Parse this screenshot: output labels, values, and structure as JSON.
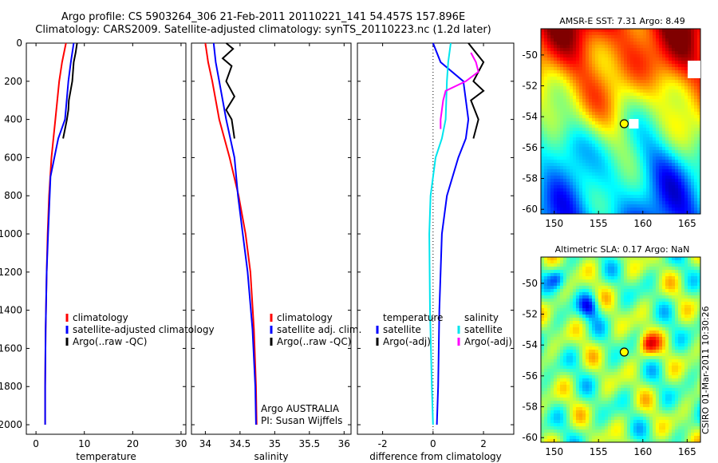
{
  "header": {
    "line1": "Argo profile: CS 5903264_306 21-Feb-2011 20110221_141 54.457S 157.896E",
    "line2": "Climatology: CARS2009. Satellite-adjusted climatology: synTS_20110223.nc (1.2d later)"
  },
  "stamp": "CSIRO 01-Mar-2011 10:30:26",
  "colors": {
    "climatology": "#ff0000",
    "satellite": "#0000ff",
    "argo": "#000000",
    "sat_diff_salinity": "#00e5ee",
    "argo_diff_salinity": "#ff00ff"
  },
  "chart_data": [
    {
      "type": "line",
      "xlabel": "temperature",
      "xlim": [
        -2,
        31
      ],
      "xticks": [
        0,
        10,
        20,
        30
      ],
      "ylim": [
        2050,
        0
      ],
      "yticks": [
        0,
        200,
        400,
        600,
        800,
        1000,
        1200,
        1400,
        1600,
        1800,
        2000
      ],
      "legend": [
        "climatology",
        "satellite-adjusted climatology",
        "Argo(..raw -QC)"
      ],
      "series": [
        {
          "name": "climatology",
          "color": "#ff0000",
          "x": [
            6.2,
            5.4,
            4.8,
            4.0,
            3.2,
            2.7,
            2.4,
            2.2,
            2.0,
            1.9,
            1.9
          ],
          "y": [
            0,
            100,
            200,
            400,
            600,
            800,
            1000,
            1200,
            1500,
            1800,
            2000
          ]
        },
        {
          "name": "satellite-adjusted climatology",
          "color": "#0000ff",
          "x": [
            7.8,
            7.2,
            6.7,
            6.0,
            4.6,
            3.0,
            2.5,
            2.2,
            2.0,
            1.9,
            1.9
          ],
          "y": [
            0,
            100,
            200,
            400,
            500,
            700,
            1000,
            1200,
            1500,
            1800,
            2000
          ]
        },
        {
          "name": "Argo(..raw -QC)",
          "color": "#000000",
          "x": [
            8.5,
            8.2,
            7.8,
            7.5,
            6.8,
            6.7,
            6.4,
            6.0,
            5.6
          ],
          "y": [
            0,
            50,
            100,
            200,
            300,
            350,
            400,
            450,
            500
          ]
        }
      ]
    },
    {
      "type": "line",
      "xlabel": "salinity",
      "xlim": [
        33.8,
        36.1
      ],
      "xticks": [
        34,
        34.5,
        35,
        35.5,
        36
      ],
      "xticklabels": [
        "34",
        "34.5",
        "35",
        "35.5",
        "36"
      ],
      "ylim": [
        2050,
        0
      ],
      "legend": [
        "climatology",
        "satellite adj. clim.",
        "Argo(..raw -QC)"
      ],
      "annotations": [
        "Argo AUSTRALIA",
        "PI: Susan Wijffels"
      ],
      "series": [
        {
          "name": "climatology",
          "color": "#ff0000",
          "x": [
            34.0,
            34.04,
            34.1,
            34.2,
            34.35,
            34.48,
            34.58,
            34.65,
            34.7,
            34.73,
            34.74
          ],
          "y": [
            0,
            100,
            200,
            400,
            600,
            800,
            1000,
            1200,
            1500,
            1800,
            2000
          ]
        },
        {
          "name": "satellite adj. clim.",
          "color": "#0000ff",
          "x": [
            34.12,
            34.15,
            34.2,
            34.3,
            34.42,
            34.47,
            34.54,
            34.61,
            34.68,
            34.72,
            34.73
          ],
          "y": [
            0,
            100,
            200,
            400,
            600,
            800,
            1000,
            1200,
            1500,
            1800,
            2000
          ]
        },
        {
          "name": "Argo(..raw -QC)",
          "color": "#000000",
          "x": [
            34.3,
            34.4,
            34.25,
            34.38,
            34.3,
            34.42,
            34.3,
            34.38,
            34.4,
            34.42
          ],
          "y": [
            0,
            30,
            80,
            120,
            200,
            280,
            350,
            400,
            450,
            500
          ]
        }
      ]
    },
    {
      "type": "line",
      "xlabel": "difference from climatology",
      "xlim": [
        -3,
        3.2
      ],
      "xticks": [
        -2,
        0,
        2
      ],
      "ylim": [
        2050,
        0
      ],
      "legend_groups": [
        {
          "title": "temperature",
          "entries": [
            "satellite",
            "Argo(-adj)"
          ]
        },
        {
          "title": "salinity",
          "entries": [
            "satellite",
            "Argo(-adj)"
          ]
        }
      ],
      "series": [
        {
          "name": "temperature satellite",
          "color": "#0000ff",
          "x": [
            0,
            0.3,
            1.2,
            1.4,
            1.3,
            1.0,
            0.55,
            0.35,
            0.25,
            0.2,
            0.15
          ],
          "y": [
            0,
            100,
            200,
            400,
            500,
            600,
            800,
            1000,
            1400,
            1800,
            2000
          ]
        },
        {
          "name": "temperature Argo(-adj)",
          "color": "#000000",
          "x": [
            1.4,
            1.7,
            2.0,
            1.6,
            2.0,
            1.5,
            1.8,
            1.6
          ],
          "y": [
            0,
            50,
            100,
            200,
            250,
            300,
            400,
            500
          ]
        },
        {
          "name": "salinity satellite",
          "color": "#00e5ee",
          "x": [
            0.7,
            0.6,
            0.55,
            0.5,
            0.35,
            0.1,
            -0.1,
            -0.15,
            -0.12,
            -0.05,
            0
          ],
          "y": [
            0,
            100,
            200,
            400,
            500,
            600,
            800,
            1000,
            1400,
            1800,
            2000
          ]
        },
        {
          "name": "salinity Argo(-adj)",
          "color": "#ff00ff",
          "x": [
            1.5,
            1.7,
            1.8,
            1.3,
            0.5,
            0.4,
            0.3,
            0.3
          ],
          "y": [
            50,
            100,
            150,
            200,
            250,
            300,
            400,
            450
          ]
        }
      ]
    },
    {
      "type": "heatmap",
      "title": "AMSR-E SST: 7.31 Argo: 8.49",
      "xlim": [
        148.5,
        166.5
      ],
      "ylim": [
        -60.3,
        -48.3
      ],
      "xticks": [
        150,
        155,
        160,
        165
      ],
      "yticks": [
        -50,
        -52,
        -54,
        -56,
        -58,
        -60
      ],
      "marker": {
        "lon": 157.9,
        "lat": -54.457
      }
    },
    {
      "type": "heatmap",
      "title": "Altimetric SLA: 0.17 Argo: NaN",
      "xlim": [
        148.5,
        166.5
      ],
      "ylim": [
        -60.3,
        -48.3
      ],
      "xticks": [
        150,
        155,
        160,
        165
      ],
      "yticks": [
        -50,
        -52,
        -54,
        -56,
        -58,
        -60
      ],
      "marker": {
        "lon": 157.9,
        "lat": -54.457
      }
    }
  ]
}
